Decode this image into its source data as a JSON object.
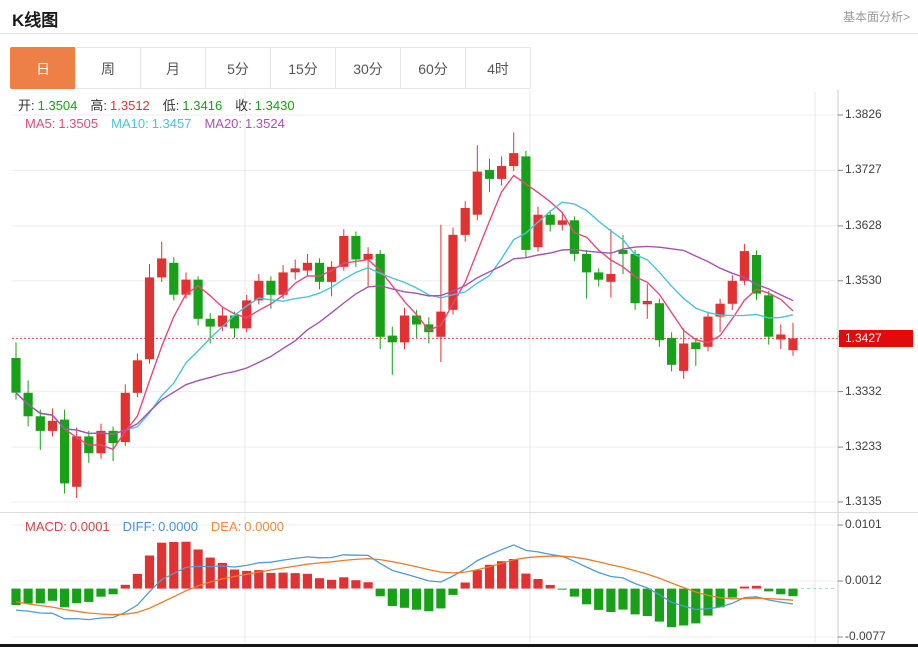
{
  "header": {
    "title": "K线图",
    "link": "基本面分析>"
  },
  "tabs": {
    "items": [
      "日",
      "周",
      "月",
      "5分",
      "15分",
      "30分",
      "60分",
      "4时"
    ],
    "active_index": 0
  },
  "readout": {
    "ohlc": [
      {
        "label": "开:",
        "value": "1.3504",
        "color": "#18a018"
      },
      {
        "label": "高:",
        "value": "1.3512",
        "color": "#e03232"
      },
      {
        "label": "低:",
        "value": "1.3416",
        "color": "#18a018"
      },
      {
        "label": "收:",
        "value": "1.3430",
        "color": "#18a018"
      }
    ],
    "ma": [
      {
        "label": "MA5:",
        "value": "1.3505",
        "color": "#e8497a"
      },
      {
        "label": "MA10:",
        "value": "1.3457",
        "color": "#49c4da"
      },
      {
        "label": "MA20:",
        "value": "1.3524",
        "color": "#a653b0"
      }
    ],
    "macd": [
      {
        "label": "MACD:",
        "value": "0.0001",
        "color": "#d64541"
      },
      {
        "label": "DIFF:",
        "value": "0.0000",
        "color": "#4a90d8"
      },
      {
        "label": "DEA:",
        "value": "0.0000",
        "color": "#ef8b3f"
      }
    ]
  },
  "price_axis": {
    "ticks": [
      {
        "label": "1.3826",
        "value": 1.3826
      },
      {
        "label": "1.3727",
        "value": 1.3727
      },
      {
        "label": "1.3628",
        "value": 1.3628
      },
      {
        "label": "1.3530",
        "value": 1.353
      },
      {
        "label": "1.3431",
        "value": 1.3431
      },
      {
        "label": "1.3332",
        "value": 1.3332
      },
      {
        "label": "1.3233",
        "value": 1.3233
      },
      {
        "label": "1.3135",
        "value": 1.3135
      }
    ],
    "badge_covers_index": 4,
    "badge": {
      "label": "1.3427",
      "value": 1.3427
    }
  },
  "macd_axis": {
    "ticks": [
      {
        "label": "0.0101",
        "value": 0.0101
      },
      {
        "label": "0.0012",
        "value": 0.0012
      },
      {
        "label": "-0.0077",
        "value": -0.0077
      }
    ]
  },
  "colors": {
    "up": "#e03232",
    "down": "#18a018",
    "ma5": "#e8497a",
    "ma10": "#49c4da",
    "ma20": "#a653b0",
    "diff_line": "#4f9bd8",
    "dea_line": "#f07c28",
    "grid": "#ededed",
    "vgrid": "#e8e8e8",
    "axis_line": "#c8c8c8",
    "axis_text": "#3f3f3f",
    "badge_bg": "#e10b0b",
    "dotted": "#f04a4a",
    "tab_active_bg": "#ed8046",
    "zero_dash": "#9fd8e0",
    "ohlc_label": "#333333"
  },
  "chart_data": {
    "type": "candlestick",
    "title": "K线图",
    "timeframe": "日",
    "convention": "red=up green=down (CN)",
    "last_price": 1.3427,
    "y_range": [
      1.3135,
      1.3826
    ],
    "overlays": [
      "MA5",
      "MA10",
      "MA20"
    ],
    "indicator": {
      "name": "MACD",
      "params": [
        12,
        26,
        9
      ],
      "y_range": [
        -0.0077,
        0.0101
      ],
      "macd": 0.0001,
      "diff": 0.0,
      "dea": 0.0
    },
    "candles_format": [
      "open",
      "high",
      "low",
      "close"
    ],
    "candles": [
      [
        1.3392,
        1.342,
        1.3318,
        1.333
      ],
      [
        1.333,
        1.3352,
        1.327,
        1.3288
      ],
      [
        1.3288,
        1.33,
        1.3228,
        1.3262
      ],
      [
        1.3262,
        1.3302,
        1.3252,
        1.328
      ],
      [
        1.3282,
        1.33,
        1.315,
        1.3168
      ],
      [
        1.3162,
        1.3268,
        1.3142,
        1.3252
      ],
      [
        1.3252,
        1.3262,
        1.3205,
        1.3222
      ],
      [
        1.3222,
        1.3275,
        1.3212,
        1.3262
      ],
      [
        1.3262,
        1.327,
        1.3208,
        1.324
      ],
      [
        1.3242,
        1.3345,
        1.3235,
        1.333
      ],
      [
        1.333,
        1.34,
        1.3322,
        1.3388
      ],
      [
        1.339,
        1.356,
        1.3382,
        1.3536
      ],
      [
        1.3536,
        1.36,
        1.3528,
        1.357
      ],
      [
        1.3562,
        1.3572,
        1.3495,
        1.3505
      ],
      [
        1.3505,
        1.3545,
        1.3498,
        1.3532
      ],
      [
        1.3532,
        1.3538,
        1.345,
        1.3462
      ],
      [
        1.3462,
        1.3472,
        1.3418,
        1.3448
      ],
      [
        1.3448,
        1.3482,
        1.344,
        1.3468
      ],
      [
        1.3468,
        1.3475,
        1.3428,
        1.3445
      ],
      [
        1.3445,
        1.3505,
        1.3438,
        1.3495
      ],
      [
        1.3495,
        1.3542,
        1.3488,
        1.353
      ],
      [
        1.353,
        1.3538,
        1.348,
        1.3505
      ],
      [
        1.3505,
        1.3558,
        1.3498,
        1.3545
      ],
      [
        1.3545,
        1.3568,
        1.3532,
        1.3552
      ],
      [
        1.3548,
        1.3578,
        1.354,
        1.3562
      ],
      [
        1.3562,
        1.357,
        1.3515,
        1.3528
      ],
      [
        1.3528,
        1.3565,
        1.3502,
        1.3555
      ],
      [
        1.3555,
        1.3622,
        1.3548,
        1.361
      ],
      [
        1.361,
        1.3618,
        1.3555,
        1.3568
      ],
      [
        1.3568,
        1.359,
        1.352,
        1.3578
      ],
      [
        1.3578,
        1.3585,
        1.3408,
        1.343
      ],
      [
        1.3432,
        1.3448,
        1.3362,
        1.342
      ],
      [
        1.342,
        1.3482,
        1.3408,
        1.3468
      ],
      [
        1.3468,
        1.3478,
        1.3428,
        1.3452
      ],
      [
        1.3452,
        1.3465,
        1.3418,
        1.3438
      ],
      [
        1.343,
        1.363,
        1.3385,
        1.3475
      ],
      [
        1.3478,
        1.3625,
        1.347,
        1.3612
      ],
      [
        1.3612,
        1.3672,
        1.36,
        1.366
      ],
      [
        1.3648,
        1.3772,
        1.3638,
        1.3725
      ],
      [
        1.3728,
        1.3748,
        1.3688,
        1.3712
      ],
      [
        1.3712,
        1.3752,
        1.37,
        1.3735
      ],
      [
        1.3735,
        1.3795,
        1.3726,
        1.3758
      ],
      [
        1.3752,
        1.3762,
        1.3572,
        1.3585
      ],
      [
        1.359,
        1.3662,
        1.3582,
        1.3648
      ],
      [
        1.3648,
        1.3656,
        1.3618,
        1.363
      ],
      [
        1.363,
        1.365,
        1.362,
        1.3638
      ],
      [
        1.3638,
        1.3645,
        1.3565,
        1.3578
      ],
      [
        1.3578,
        1.3585,
        1.3498,
        1.3545
      ],
      [
        1.3545,
        1.3552,
        1.352,
        1.3532
      ],
      [
        1.3528,
        1.3622,
        1.35,
        1.3542
      ],
      [
        1.3585,
        1.3612,
        1.3542,
        1.3578
      ],
      [
        1.3578,
        1.3585,
        1.3478,
        1.349
      ],
      [
        1.3488,
        1.3524,
        1.3462,
        1.3494
      ],
      [
        1.349,
        1.3498,
        1.3412,
        1.3424
      ],
      [
        1.3428,
        1.3438,
        1.3368,
        1.338
      ],
      [
        1.3369,
        1.3445,
        1.3355,
        1.3418
      ],
      [
        1.342,
        1.3428,
        1.3378,
        1.3408
      ],
      [
        1.3412,
        1.3475,
        1.3404,
        1.3466
      ],
      [
        1.3466,
        1.3498,
        1.3438,
        1.3489
      ],
      [
        1.3489,
        1.354,
        1.3478,
        1.353
      ],
      [
        1.353,
        1.3596,
        1.3522,
        1.3583
      ],
      [
        1.3576,
        1.3584,
        1.3496,
        1.3507
      ],
      [
        1.3504,
        1.3512,
        1.3416,
        1.343
      ],
      [
        1.3425,
        1.3452,
        1.3408,
        1.3434
      ],
      [
        1.3406,
        1.3455,
        1.3396,
        1.3427
      ]
    ]
  }
}
